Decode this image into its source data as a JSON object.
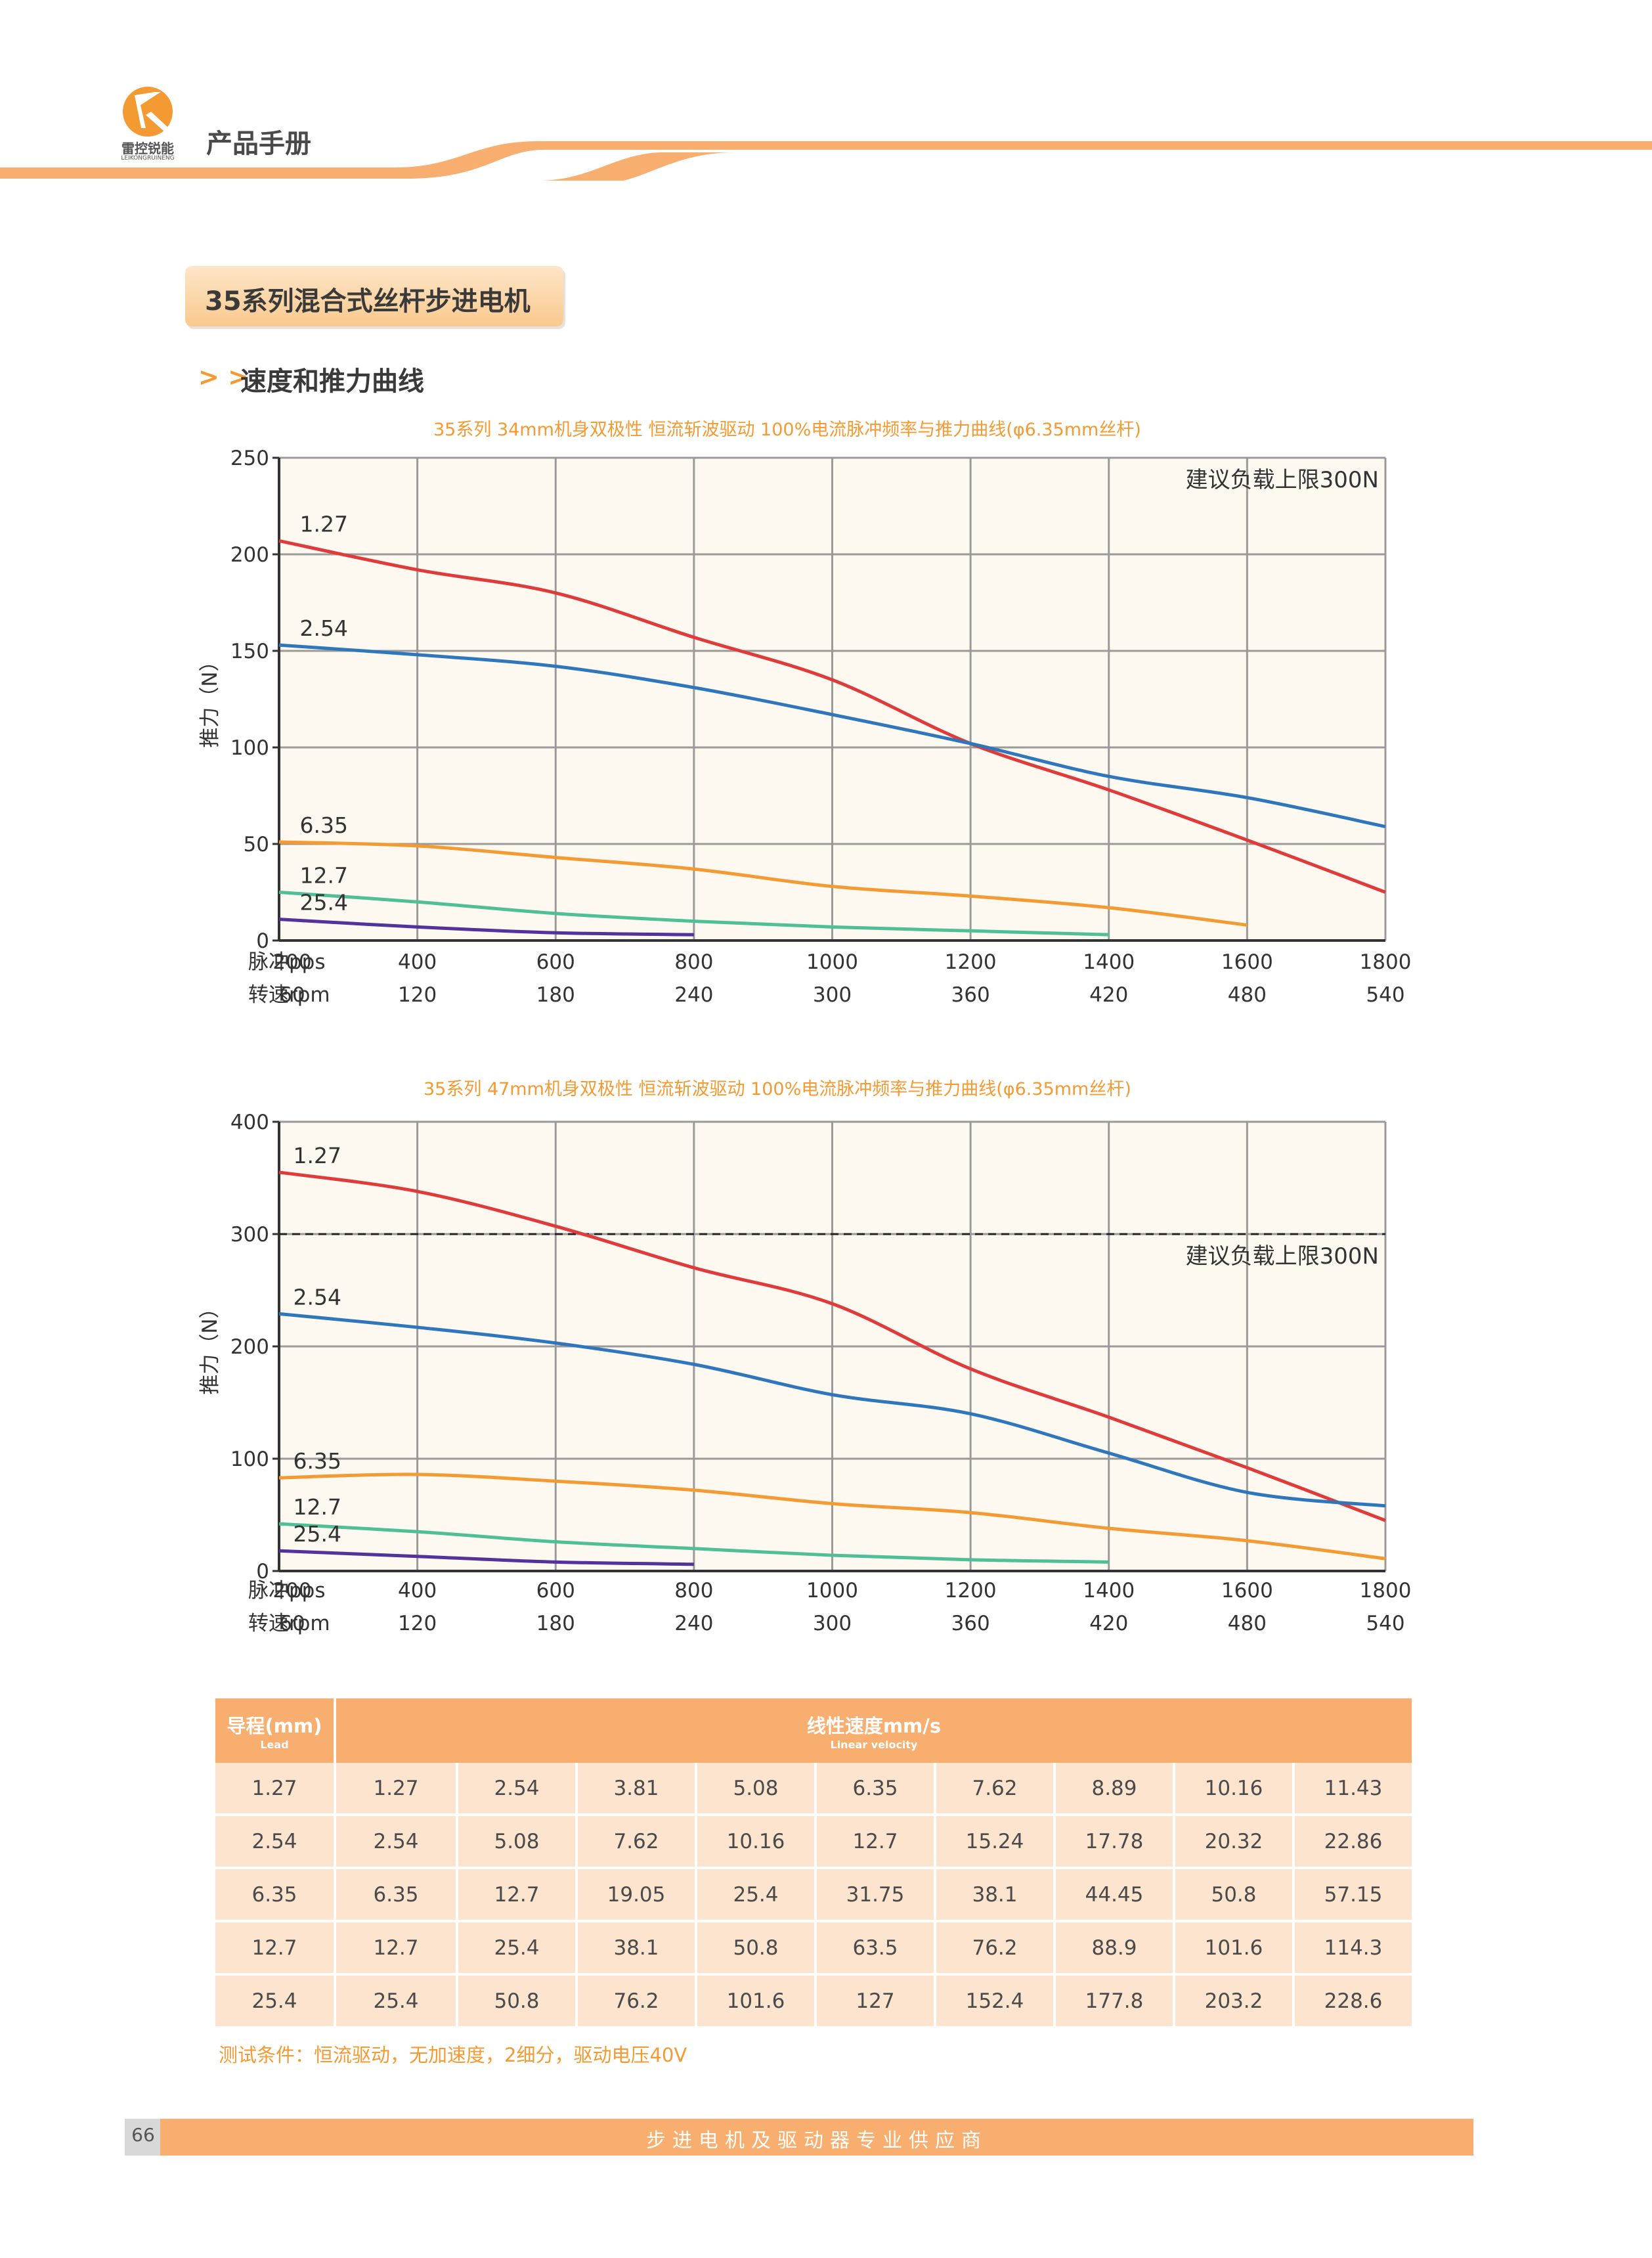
{
  "header": {
    "doc_title": "产品手册",
    "logo_text": "雷控锐能",
    "logo_sub": "LEIKONGRUINENG"
  },
  "section": {
    "title": "35系列混合式丝杆步进电机",
    "subtitle_marker": "> >",
    "subtitle": "速度和推力曲线"
  },
  "colors": {
    "accent": "#f39a32",
    "series": [
      "#e03b3b",
      "#2f77bd",
      "#f39a32",
      "#4fbf97",
      "#53329b"
    ]
  },
  "chart_data": [
    {
      "type": "line",
      "title": "35系列 34mm机身双极性 恒流斩波驱动 100%电流脉冲频率与推力曲线(φ6.35mm丝杆)",
      "ylabel": "推力（N）",
      "x_row_labels": [
        "脉冲pps",
        "转速rpm"
      ],
      "x_ticks": [
        200,
        400,
        600,
        800,
        1000,
        1200,
        1400,
        1600,
        1800
      ],
      "rpm_ticks": [
        60,
        120,
        180,
        240,
        300,
        360,
        420,
        480,
        540
      ],
      "xlim": [
        200,
        1800
      ],
      "ylim": [
        0,
        250
      ],
      "y_ticks": [
        0,
        50,
        100,
        150,
        200,
        250
      ],
      "grid": true,
      "annotation": "建议负载上限300N",
      "limit_line": null,
      "series": [
        {
          "name": "1.27",
          "x": [
            200,
            400,
            600,
            800,
            1000,
            1200,
            1400,
            1600,
            1800
          ],
          "y": [
            207,
            192,
            180,
            157,
            135,
            102,
            78,
            52,
            25
          ]
        },
        {
          "name": "2.54",
          "x": [
            200,
            400,
            600,
            800,
            1000,
            1200,
            1400,
            1600,
            1800
          ],
          "y": [
            153,
            148,
            142,
            131,
            117,
            102,
            85,
            74,
            59
          ]
        },
        {
          "name": "6.35",
          "x": [
            200,
            400,
            600,
            800,
            1000,
            1200,
            1400,
            1600
          ],
          "y": [
            51,
            49,
            43,
            37,
            28,
            23,
            17,
            8
          ]
        },
        {
          "name": "12.7",
          "x": [
            200,
            400,
            600,
            800,
            1000,
            1200,
            1400
          ],
          "y": [
            25,
            20,
            14,
            10,
            7,
            5,
            3
          ]
        },
        {
          "name": "25.4",
          "x": [
            200,
            400,
            600,
            800
          ],
          "y": [
            11,
            7,
            4,
            3
          ]
        }
      ]
    },
    {
      "type": "line",
      "title": "35系列 47mm机身双极性 恒流斩波驱动 100%电流脉冲频率与推力曲线(φ6.35mm丝杆)",
      "ylabel": "推力（N）",
      "x_row_labels": [
        "脉冲pps",
        "转速rpm"
      ],
      "x_ticks": [
        200,
        400,
        600,
        800,
        1000,
        1200,
        1400,
        1600,
        1800
      ],
      "rpm_ticks": [
        60,
        120,
        180,
        240,
        300,
        360,
        420,
        480,
        540
      ],
      "xlim": [
        200,
        1800
      ],
      "ylim": [
        0,
        400
      ],
      "y_ticks": [
        0,
        100,
        200,
        300,
        400
      ],
      "grid": true,
      "annotation": "建议负载上限300N",
      "limit_line": 300,
      "series": [
        {
          "name": "1.27",
          "x": [
            200,
            400,
            600,
            800,
            1000,
            1200,
            1400,
            1600,
            1800
          ],
          "y": [
            355,
            338,
            307,
            270,
            238,
            180,
            137,
            92,
            45
          ]
        },
        {
          "name": "2.54",
          "x": [
            200,
            400,
            600,
            800,
            1000,
            1200,
            1400,
            1600,
            1800
          ],
          "y": [
            229,
            217,
            203,
            184,
            157,
            140,
            105,
            70,
            58
          ]
        },
        {
          "name": "6.35",
          "x": [
            200,
            400,
            600,
            800,
            1000,
            1200,
            1400,
            1600,
            1800
          ],
          "y": [
            83,
            86,
            80,
            72,
            60,
            52,
            38,
            27,
            11
          ]
        },
        {
          "name": "12.7",
          "x": [
            200,
            400,
            600,
            800,
            1000,
            1200,
            1400
          ],
          "y": [
            42,
            35,
            26,
            20,
            14,
            10,
            8
          ]
        },
        {
          "name": "25.4",
          "x": [
            200,
            400,
            600,
            800
          ],
          "y": [
            18,
            13,
            8,
            6
          ]
        }
      ]
    }
  ],
  "table": {
    "lead_header": "导程(mm)",
    "lead_header_sub": "Lead",
    "velocity_header": "线性速度mm/s",
    "velocity_header_sub": "Linear velocity",
    "rows": [
      [
        "1.27",
        "1.27",
        "2.54",
        "3.81",
        "5.08",
        "6.35",
        "7.62",
        "8.89",
        "10.16",
        "11.43"
      ],
      [
        "2.54",
        "2.54",
        "5.08",
        "7.62",
        "10.16",
        "12.7",
        "15.24",
        "17.78",
        "20.32",
        "22.86"
      ],
      [
        "6.35",
        "6.35",
        "12.7",
        "19.05",
        "25.4",
        "31.75",
        "38.1",
        "44.45",
        "50.8",
        "57.15"
      ],
      [
        "12.7",
        "12.7",
        "25.4",
        "38.1",
        "50.8",
        "63.5",
        "76.2",
        "88.9",
        "101.6",
        "114.3"
      ],
      [
        "25.4",
        "25.4",
        "50.8",
        "76.2",
        "101.6",
        "127",
        "152.4",
        "177.8",
        "203.2",
        "228.6"
      ]
    ]
  },
  "note": "测试条件：恒流驱动，无加速度，2细分，驱动电压40V",
  "footer": {
    "page_number": "66",
    "text": "步进电机及驱动器专业供应商"
  }
}
